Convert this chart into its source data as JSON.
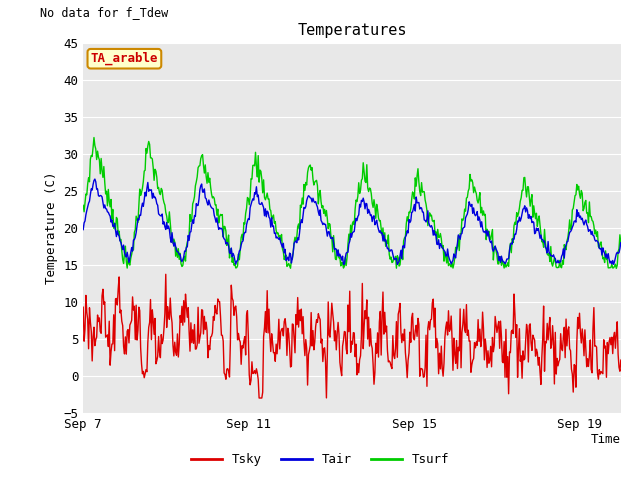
{
  "title": "Temperatures",
  "xlabel": "Time",
  "ylabel": "Temperature (C)",
  "top_left_text": "No data for f_Tdew",
  "box_label": "TA_arable",
  "ylim": [
    -5,
    45
  ],
  "yticks": [
    -5,
    0,
    5,
    10,
    15,
    20,
    25,
    30,
    35,
    40,
    45
  ],
  "xtick_labels": [
    "Sep 7",
    "Sep 11",
    "Sep 15",
    "Sep 19"
  ],
  "xtick_positions": [
    0,
    4,
    8,
    12
  ],
  "plot_bg_color": "#e8e8e8",
  "tsky_color": "#dd0000",
  "tair_color": "#0000dd",
  "tsurf_color": "#00cc00",
  "n_points": 600,
  "days": 13
}
